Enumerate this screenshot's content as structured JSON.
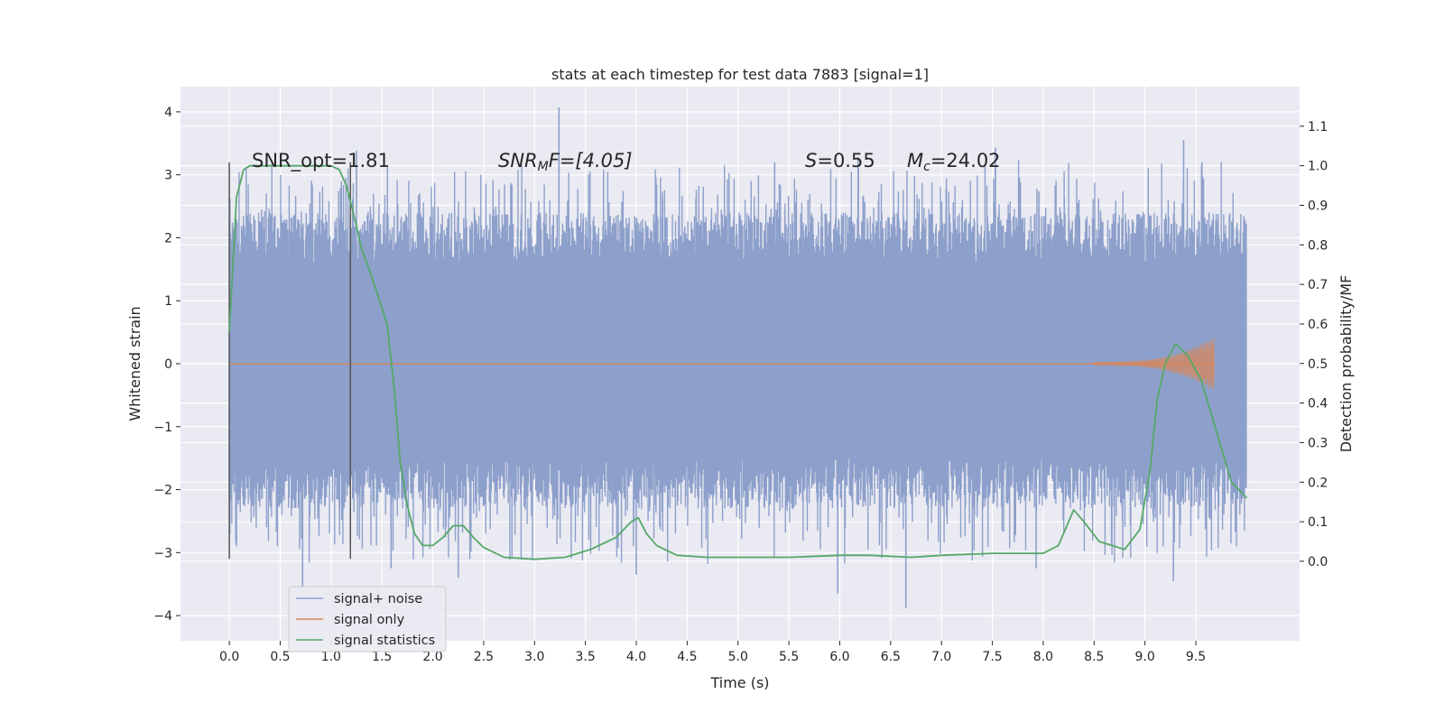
{
  "chart_data": {
    "type": "line",
    "title": "stats at each timestep for test data 7883 [signal=1]",
    "xlabel": "Time (s)",
    "ylabel": "Whitened strain",
    "y2label": "Detection probability/MF",
    "xlim": [
      -0.48,
      10.52
    ],
    "ylim": [
      -4.4,
      4.4
    ],
    "y2lim": [
      -0.201,
      1.2
    ],
    "xticks": [
      0.0,
      0.5,
      1.0,
      1.5,
      2.0,
      2.5,
      3.0,
      3.5,
      4.0,
      4.5,
      5.0,
      5.5,
      6.0,
      6.5,
      7.0,
      7.5,
      8.0,
      8.5,
      9.0,
      9.5
    ],
    "xtick_labels": [
      "0.0",
      "0.5",
      "1.0",
      "1.5",
      "2.0",
      "2.5",
      "3.0",
      "3.5",
      "4.0",
      "4.5",
      "5.0",
      "5.5",
      "6.0",
      "6.5",
      "7.0",
      "7.5",
      "8.0",
      "8.5",
      "9.0",
      "9.5"
    ],
    "yticks": [
      4,
      3,
      2,
      1,
      0,
      -1,
      -2,
      -3,
      -4
    ],
    "ytick_labels": [
      "4",
      "3",
      "2",
      "1",
      "0",
      "−1",
      "−2",
      "−3",
      "−4"
    ],
    "y2ticks": [
      1.1,
      1.0,
      0.9,
      0.8,
      0.7,
      0.6,
      0.5,
      0.4,
      0.3,
      0.2,
      0.1,
      0.0
    ],
    "y2tick_labels": [
      "1.1",
      "1.0",
      "0.9",
      "0.8",
      "0.7",
      "0.6",
      "0.5",
      "0.4",
      "0.3",
      "0.2",
      "0.1",
      "0.0"
    ],
    "grid": true,
    "legend_position": "lower-left",
    "annotations": {
      "snr_opt": "SNR_opt=1.81",
      "snr_mf_main": "SNR",
      "snr_mf_sub": "M",
      "snr_mf_rest": "F=[4.05]",
      "s_sym": "S",
      "s_val": "=0.55",
      "mc_sym": "M",
      "mc_sub": "c",
      "mc_val": "=24.02"
    },
    "vlines": [
      {
        "x": 0.0,
        "ymin": -3.1,
        "ymax": 3.2
      },
      {
        "x": 1.19,
        "ymin": -3.1,
        "ymax": 3.2
      }
    ],
    "series": [
      {
        "name": "signal+ noise",
        "color": "#8da0cb",
        "kind": "noise",
        "x_range": [
          0.0,
          10.0
        ],
        "core_band": [
          -1.25,
          1.3
        ],
        "envelope_band": [
          -2.0,
          2.1
        ],
        "spike_peaks": [
          {
            "x": 0.07,
            "y": -2.9
          },
          {
            "x": 0.72,
            "y": -3.55
          },
          {
            "x": 1.25,
            "y": 3.38
          },
          {
            "x": 1.59,
            "y": -3.25
          },
          {
            "x": 2.25,
            "y": -3.4
          },
          {
            "x": 3.24,
            "y": 4.07
          },
          {
            "x": 4.0,
            "y": -3.35
          },
          {
            "x": 5.36,
            "y": 3.2
          },
          {
            "x": 5.98,
            "y": -3.65
          },
          {
            "x": 6.18,
            "y": 3.28
          },
          {
            "x": 6.65,
            "y": -3.88
          },
          {
            "x": 7.53,
            "y": 3.43
          },
          {
            "x": 7.93,
            "y": -3.25
          },
          {
            "x": 9.28,
            "y": -3.45
          },
          {
            "x": 9.38,
            "y": 3.55
          },
          {
            "x": 9.56,
            "y": 3.2
          }
        ]
      },
      {
        "name": "signal only",
        "color": "#dd8452",
        "kind": "chirp",
        "x_range": [
          0.0,
          9.68
        ],
        "peak_amplitude": 0.4
      },
      {
        "name": "signal statistics",
        "color": "#55a868",
        "kind": "curve",
        "axis": "right",
        "x": [
          0.0,
          0.07,
          0.14,
          0.2,
          0.3,
          0.5,
          0.8,
          1.0,
          1.08,
          1.15,
          1.22,
          1.3,
          1.4,
          1.45,
          1.55,
          1.62,
          1.68,
          1.75,
          1.82,
          1.9,
          2.0,
          2.1,
          2.2,
          2.3,
          2.4,
          2.5,
          2.7,
          3.0,
          3.3,
          3.55,
          3.8,
          3.95,
          4.02,
          4.1,
          4.2,
          4.4,
          4.7,
          5.0,
          5.5,
          6.0,
          6.3,
          6.7,
          7.0,
          7.5,
          8.0,
          8.15,
          8.3,
          8.4,
          8.55,
          8.8,
          8.95,
          9.05,
          9.12,
          9.2,
          9.3,
          9.42,
          9.55,
          9.7,
          9.85,
          10.0
        ],
        "values": [
          0.58,
          0.92,
          0.99,
          1.0,
          1.0,
          1.0,
          1.0,
          1.0,
          0.99,
          0.95,
          0.88,
          0.79,
          0.72,
          0.68,
          0.6,
          0.44,
          0.25,
          0.14,
          0.07,
          0.04,
          0.04,
          0.06,
          0.09,
          0.09,
          0.06,
          0.035,
          0.01,
          0.005,
          0.01,
          0.03,
          0.06,
          0.1,
          0.11,
          0.07,
          0.04,
          0.015,
          0.01,
          0.01,
          0.01,
          0.015,
          0.015,
          0.01,
          0.015,
          0.02,
          0.02,
          0.04,
          0.13,
          0.1,
          0.05,
          0.03,
          0.08,
          0.23,
          0.41,
          0.5,
          0.55,
          0.52,
          0.46,
          0.33,
          0.2,
          0.16
        ]
      }
    ]
  }
}
